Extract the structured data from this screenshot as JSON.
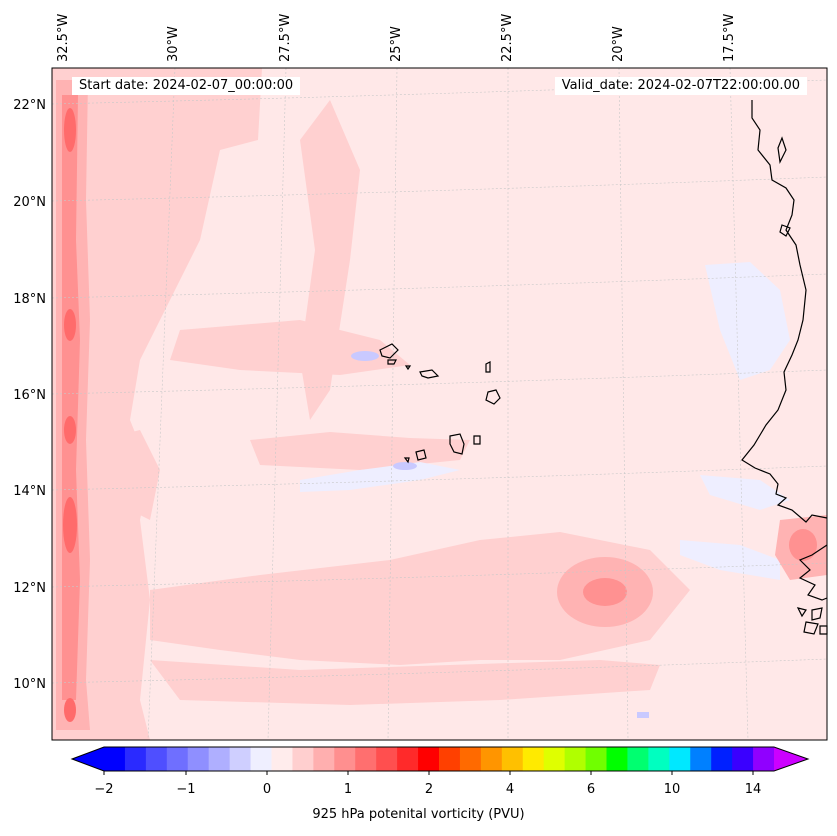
{
  "header": {
    "start_label": "Start date: 2024-02-07_00:00:00",
    "valid_label": "Valid_date: 2024-02-07T22:00:00.00"
  },
  "map": {
    "lon_labels": [
      "32.5°W",
      "30°W",
      "27.5°W",
      "25°W",
      "22.5°W",
      "20°W",
      "17.5°W"
    ],
    "lat_labels": [
      "22°N",
      "20°N",
      "18°N",
      "16°N",
      "14°N",
      "12°N",
      "10°N"
    ],
    "colors": {
      "background": "#ffe8e8",
      "light_pink": "#ffd0d0",
      "pink": "#ffb3b3",
      "mid_red": "#ff9191",
      "red": "#ff6b6b",
      "light_blue": "#eeeeff",
      "blue": "#c9c9ff",
      "coast": "#000000",
      "grid": "#c8c8c8"
    }
  },
  "colorbar": {
    "title": "925 hPa potenital vorticity (PVU)",
    "tick_labels": [
      "−2",
      "−1",
      "0",
      "1",
      "2",
      "4",
      "6",
      "10",
      "14"
    ],
    "colors": [
      "#0000ff",
      "#2a2aff",
      "#4f4fff",
      "#6f6fff",
      "#8f8fff",
      "#afafff",
      "#cfcfff",
      "#efefff",
      "#ffecec",
      "#ffcfcf",
      "#ffafaf",
      "#ff8f8f",
      "#ff6f6f",
      "#ff4f4f",
      "#ff2a2a",
      "#ff0000",
      "#ff4000",
      "#ff6a00",
      "#ff9500",
      "#ffc000",
      "#ffea00",
      "#dfff00",
      "#b0ff00",
      "#70ff00",
      "#00ff00",
      "#00ff70",
      "#00ffc0",
      "#00e8ff",
      "#0080ff",
      "#0020ff",
      "#3a00ff",
      "#9000ff"
    ],
    "extend_low_color": "#0000ff",
    "extend_high_color": "#cc00ff"
  }
}
